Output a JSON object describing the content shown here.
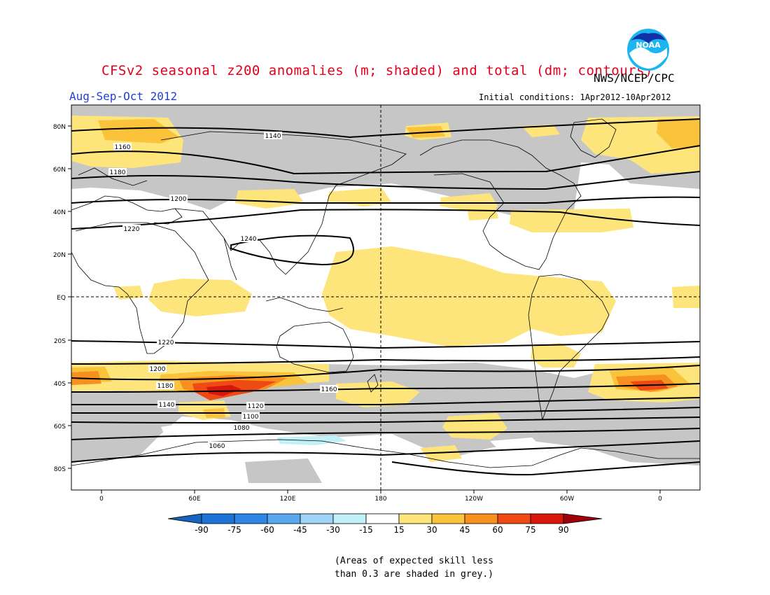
{
  "header": {
    "title": "CFSv2 seasonal z200 anomalies (m; shaded) and total (dm; contours)",
    "agency": "NWS/NCEP/CPC",
    "season": "Aug-Sep-Oct 2012",
    "initial_conditions": "Initial conditions: 1Apr2012-10Apr2012",
    "logo_text": "NOAA"
  },
  "map": {
    "projection": "cylindrical equidistant",
    "lat_labels": [
      "80N",
      "60N",
      "40N",
      "20N",
      "EQ",
      "20S",
      "40S",
      "60S",
      "80S"
    ],
    "lon_labels": [
      "0",
      "60E",
      "120E",
      "180",
      "120W",
      "60W",
      "0"
    ],
    "contour_labels": [
      "1140",
      "1160",
      "1180",
      "1200",
      "1220",
      "1240",
      "1220",
      "1200",
      "1180",
      "1160",
      "1140",
      "1120",
      "1100",
      "1080",
      "1060"
    ],
    "colorbar": {
      "ticks": [
        "-90",
        "-75",
        "-60",
        "-45",
        "-30",
        "-15",
        "15",
        "30",
        "45",
        "60",
        "75",
        "90"
      ],
      "colors": [
        "#1565c0",
        "#1e73d6",
        "#2f86e6",
        "#5aa8ee",
        "#9ed4f5",
        "#c2f0f7",
        "#ffffff",
        "#fde57c",
        "#fbc23c",
        "#f7901e",
        "#ef4a14",
        "#d8160c",
        "#a0000a"
      ]
    },
    "anomaly_color_positive": "#fde57c",
    "skill_mask_color": "#c6c6c6"
  },
  "footer": {
    "skill_note_line1": "(Areas of expected skill less",
    "skill_note_line2": "than 0.3 are shaded in grey.)"
  }
}
